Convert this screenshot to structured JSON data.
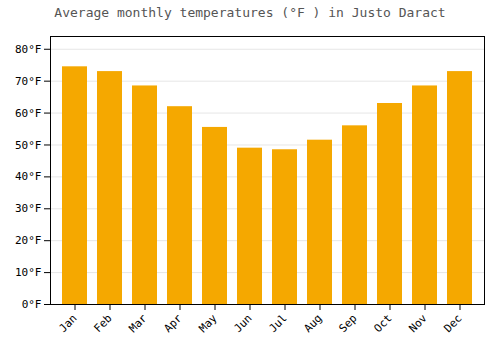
{
  "chart_data": {
    "type": "bar",
    "title": "Average monthly temperatures (°F ) in Justo Daract",
    "categories": [
      "Jan",
      "Feb",
      "Mar",
      "Apr",
      "May",
      "Jun",
      "Jul",
      "Aug",
      "Sep",
      "Oct",
      "Nov",
      "Dec"
    ],
    "values": [
      74.5,
      73.0,
      68.5,
      62.0,
      55.5,
      49.0,
      48.5,
      51.5,
      56.0,
      63.0,
      68.5,
      73.0
    ],
    "color": "#F5A800",
    "ylim": [
      0,
      84
    ],
    "yticks": [
      {
        "value": 0,
        "label": "0°F"
      },
      {
        "value": 10,
        "label": "10°F"
      },
      {
        "value": 20,
        "label": "20°F"
      },
      {
        "value": 30,
        "label": "30°F"
      },
      {
        "value": 40,
        "label": "40°F"
      },
      {
        "value": 50,
        "label": "50°F"
      },
      {
        "value": 60,
        "label": "60°F"
      },
      {
        "value": 70,
        "label": "70°F"
      },
      {
        "value": 80,
        "label": "80°F"
      }
    ],
    "grid": true
  }
}
